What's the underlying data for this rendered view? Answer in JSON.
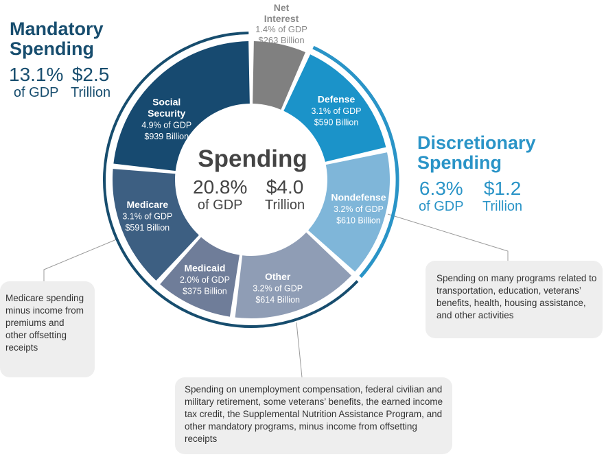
{
  "mandatory": {
    "title_line1": "Mandatory",
    "title_line2": "Spending",
    "pct": "13.1%",
    "pct_unit": "of GDP",
    "amount": "$2.5",
    "amount_unit": "Trillion",
    "color": "#174d6e"
  },
  "discretionary": {
    "title_line1": "Discretionary",
    "title_line2": "Spending",
    "pct": "6.3%",
    "pct_unit": "of GDP",
    "amount": "$1.2",
    "amount_unit": "Trillion",
    "color": "#2a94c7"
  },
  "center": {
    "title": "Spending",
    "pct": "20.8%",
    "pct_unit": "of GDP",
    "amount": "$4.0",
    "amount_unit": "Trillion"
  },
  "net_interest": {
    "name_line1": "Net",
    "name_line2": "Interest",
    "pct": "1.4% of GDP",
    "amount": "$263 Billion"
  },
  "notes": {
    "medicare": "Medicare spending minus income from premiums and other offsetting receipts",
    "nondefense": "Spending on many programs related to transportation, education, veterans’ benefits, health, housing assistance, and other activities",
    "other": "Spending on unemployment compensation, federal civilian and military retirement, some veterans’ benefits, the earned income tax credit, the Supplemental Nutrition Assistance Program, and other mandatory programs, minus income from offsetting receipts"
  },
  "chart_data": {
    "type": "pie",
    "unit": "% of GDP",
    "slices": [
      {
        "name": "Net Interest",
        "name_lines": [
          "Net",
          "Interest"
        ],
        "pct_gdp": 1.4,
        "pct_label": "1.4% of GDP",
        "amount_label": "$263 Billion",
        "group": "Net Interest",
        "color": "#808080"
      },
      {
        "name": "Defense",
        "name_lines": [
          "Defense"
        ],
        "pct_gdp": 3.1,
        "pct_label": "3.1% of GDP",
        "amount_label": "$590 Billion",
        "group": "Discretionary",
        "color": "#1b93c9"
      },
      {
        "name": "Nondefense",
        "name_lines": [
          "Nondefense"
        ],
        "pct_gdp": 3.2,
        "pct_label": "3.2% of GDP",
        "amount_label": "$610 Billion",
        "group": "Discretionary",
        "color": "#7fb6d9"
      },
      {
        "name": "Other",
        "name_lines": [
          "Other"
        ],
        "pct_gdp": 3.2,
        "pct_label": "3.2% of GDP",
        "amount_label": "$614 Billion",
        "group": "Mandatory",
        "color": "#8f9db5"
      },
      {
        "name": "Medicaid",
        "name_lines": [
          "Medicaid"
        ],
        "pct_gdp": 2.0,
        "pct_label": "2.0% of GDP",
        "amount_label": "$375 Billion",
        "group": "Mandatory",
        "color": "#6f7d99"
      },
      {
        "name": "Medicare",
        "name_lines": [
          "Medicare"
        ],
        "pct_gdp": 3.1,
        "pct_label": "3.1% of GDP",
        "amount_label": "$591 Billion",
        "group": "Mandatory",
        "color": "#3d5f82"
      },
      {
        "name": "Social Security",
        "name_lines": [
          "Social",
          "Security"
        ],
        "pct_gdp": 4.9,
        "pct_label": "4.9% of GDP",
        "amount_label": "$939 Billion",
        "group": "Mandatory",
        "color": "#174a70"
      }
    ],
    "total_pct_gdp": 20.8,
    "total_amount_label": "$4.0 Trillion"
  }
}
